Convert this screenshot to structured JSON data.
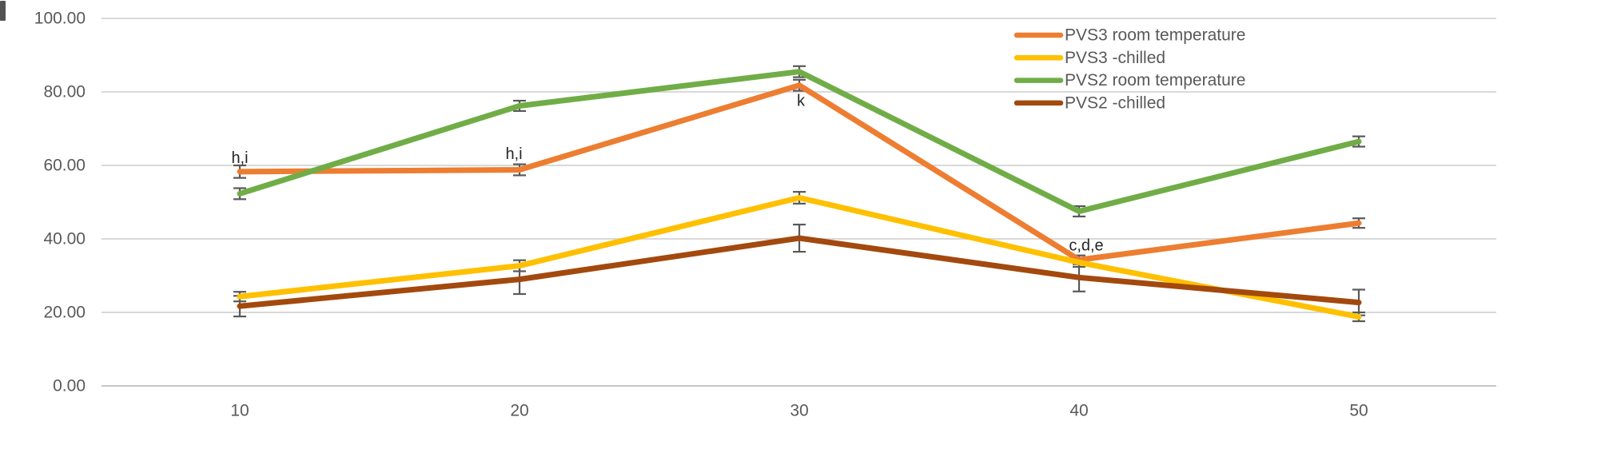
{
  "chart_data": {
    "type": "line",
    "title": "",
    "xlabel": "",
    "ylabel": "",
    "grid": true,
    "legend_position": "top-right",
    "categories": [
      "10",
      "20",
      "30",
      "40",
      "50"
    ],
    "x_values": [
      10,
      20,
      30,
      40,
      50
    ],
    "ylim": [
      0,
      100
    ],
    "y_ticks": [
      {
        "label": "0.00",
        "value": 0
      },
      {
        "label": "20.00",
        "value": 20
      },
      {
        "label": "40.00",
        "value": 40
      },
      {
        "label": "60.00",
        "value": 60
      },
      {
        "label": "80.00",
        "value": 80
      },
      {
        "label": "100.00",
        "value": 100
      }
    ],
    "series": [
      {
        "name": "PVS3 room temperature",
        "color": "#ED7D31",
        "values": [
          58.3,
          58.8,
          81.8,
          34.3,
          44.3
        ],
        "error_bars": [
          1.7,
          1.5,
          1.5,
          1.2,
          1.3
        ]
      },
      {
        "name": "PVS3 -chilled",
        "color": "#FFC000",
        "values": [
          24.3,
          32.7,
          51.2,
          33.6,
          18.8
        ],
        "error_bars": [
          1.3,
          1.5,
          1.6,
          1.2,
          1.2
        ]
      },
      {
        "name": "PVS2 room temperature",
        "color": "#70AD47",
        "values": [
          52.3,
          76.2,
          85.5,
          47.5,
          66.5
        ],
        "error_bars": [
          1.5,
          1.4,
          1.5,
          1.4,
          1.4
        ]
      },
      {
        "name": "PVS2 -chilled",
        "color": "#A3490E",
        "values": [
          21.7,
          29.0,
          40.2,
          29.5,
          22.7
        ],
        "error_bars": [
          2.8,
          4.0,
          3.7,
          3.8,
          3.5
        ]
      }
    ],
    "annotations": [
      {
        "text": "h,i",
        "category_index": 0,
        "value": 62.0,
        "dx": 0
      },
      {
        "text": "h,i",
        "category_index": 1,
        "value": 63.0,
        "dx": -7
      },
      {
        "text": "k",
        "category_index": 2,
        "value": 77.5,
        "dx": 2
      },
      {
        "text": "c,d,e",
        "category_index": 3,
        "value": 38.2,
        "dx": 9
      }
    ],
    "colors": {
      "grid_line": "#D9D9D9",
      "axis_line": "#C6C6C6",
      "tick_text": "#595959",
      "legend_text": "#595959",
      "annotation_text": "#262626",
      "error_bar": "#595959",
      "background": "#FFFFFF"
    }
  }
}
